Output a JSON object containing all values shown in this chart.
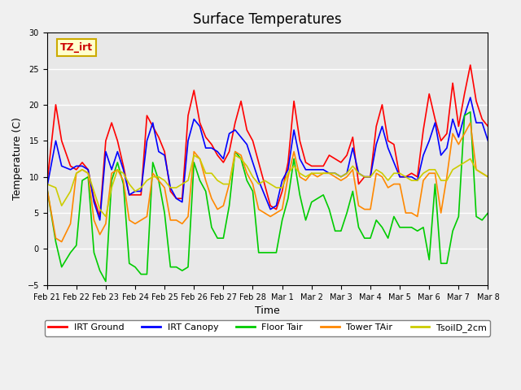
{
  "title": "Surface Temperatures",
  "xlabel": "Time",
  "ylabel": "Temperature (C)",
  "ylim": [
    -5,
    30
  ],
  "background_color": "#f0f0f0",
  "inner_background": "#e8e8e8",
  "grid_color": "white",
  "annotation_text": "TZ_irt",
  "annotation_color": "#cc0000",
  "annotation_bg": "#ffffcc",
  "annotation_border": "#ccaa00",
  "x_tick_labels": [
    "Feb 21",
    "Feb 22",
    "Feb 23",
    "Feb 24",
    "Feb 25",
    "Feb 26",
    "Feb 27",
    "Feb 28",
    "Mar 1",
    "Mar 2",
    "Mar 3",
    "Mar 4",
    "Mar 5",
    "Mar 6",
    "Mar 7",
    "Mar 8"
  ],
  "legend_entries": [
    {
      "label": "IRT Ground",
      "color": "#ff0000"
    },
    {
      "label": "IRT Canopy",
      "color": "#0000ff"
    },
    {
      "label": "Floor Tair",
      "color": "#00cc00"
    },
    {
      "label": "Tower TAir",
      "color": "#ff8800"
    },
    {
      "label": "TsoilD_2cm",
      "color": "#cccc00"
    }
  ],
  "series": {
    "IRT_Ground": {
      "color": "#ff0000",
      "x": [
        0,
        0.3,
        0.5,
        0.8,
        1.0,
        1.2,
        1.4,
        1.6,
        1.8,
        2.0,
        2.2,
        2.4,
        2.6,
        2.8,
        3.0,
        3.2,
        3.4,
        3.6,
        3.8,
        4.0,
        4.2,
        4.4,
        4.6,
        4.8,
        5.0,
        5.2,
        5.4,
        5.6,
        5.8,
        6.0,
        6.2,
        6.4,
        6.6,
        6.8,
        7.0,
        7.2,
        7.4,
        7.6,
        7.8,
        8.0,
        8.2,
        8.4,
        8.6,
        8.8,
        9.0,
        9.2,
        9.4,
        9.6,
        9.8,
        10.0,
        10.2,
        10.4,
        10.6,
        10.8,
        11.0,
        11.2,
        11.4,
        11.6,
        11.8,
        12.0,
        12.2,
        12.4,
        12.6,
        12.8,
        13.0,
        13.2,
        13.4,
        13.6,
        13.8,
        14.0,
        14.2,
        14.4,
        14.6,
        14.8,
        15.0
      ],
      "y": [
        9.0,
        20.0,
        15.0,
        11.5,
        11.0,
        12.0,
        11.0,
        7.0,
        4.5,
        15.0,
        17.5,
        15.0,
        11.5,
        7.5,
        7.5,
        7.5,
        18.5,
        17.0,
        15.5,
        13.5,
        8.0,
        7.0,
        7.0,
        18.5,
        22.0,
        17.5,
        15.5,
        14.5,
        13.0,
        12.0,
        13.5,
        17.5,
        20.5,
        16.5,
        15.0,
        12.0,
        9.0,
        6.0,
        5.5,
        8.0,
        12.0,
        20.5,
        15.0,
        12.0,
        11.5,
        11.5,
        11.5,
        13.0,
        12.5,
        12.0,
        13.0,
        15.5,
        9.0,
        10.0,
        10.0,
        17.0,
        20.0,
        15.0,
        14.5,
        10.0,
        10.0,
        10.5,
        10.0,
        16.5,
        21.5,
        18.0,
        15.0,
        16.0,
        23.0,
        17.0,
        21.5,
        25.5,
        20.5,
        18.0,
        17.0
      ]
    },
    "IRT_Canopy": {
      "color": "#0000ff",
      "x": [
        0,
        0.3,
        0.5,
        0.8,
        1.0,
        1.2,
        1.4,
        1.6,
        1.8,
        2.0,
        2.2,
        2.4,
        2.6,
        2.8,
        3.0,
        3.2,
        3.4,
        3.6,
        3.8,
        4.0,
        4.2,
        4.4,
        4.6,
        4.8,
        5.0,
        5.2,
        5.4,
        5.6,
        5.8,
        6.0,
        6.2,
        6.4,
        6.6,
        6.8,
        7.0,
        7.2,
        7.4,
        7.6,
        7.8,
        8.0,
        8.2,
        8.4,
        8.6,
        8.8,
        9.0,
        9.2,
        9.4,
        9.6,
        9.8,
        10.0,
        10.2,
        10.4,
        10.6,
        10.8,
        11.0,
        11.2,
        11.4,
        11.6,
        11.8,
        12.0,
        12.2,
        12.4,
        12.6,
        12.8,
        13.0,
        13.2,
        13.4,
        13.6,
        13.8,
        14.0,
        14.2,
        14.4,
        14.6,
        14.8,
        15.0
      ],
      "y": [
        8.5,
        15.0,
        11.5,
        11.0,
        11.5,
        11.5,
        11.0,
        6.5,
        4.0,
        13.5,
        11.0,
        13.5,
        11.0,
        7.5,
        8.0,
        8.0,
        15.0,
        17.5,
        13.5,
        13.0,
        8.5,
        7.0,
        6.5,
        15.0,
        18.0,
        17.0,
        14.0,
        14.0,
        13.5,
        12.5,
        16.0,
        16.5,
        15.5,
        14.5,
        12.0,
        9.5,
        7.5,
        5.5,
        6.0,
        9.5,
        11.0,
        16.5,
        12.5,
        11.0,
        11.0,
        11.0,
        11.0,
        10.5,
        10.5,
        10.0,
        10.5,
        14.0,
        10.5,
        10.0,
        10.0,
        14.5,
        17.0,
        14.0,
        12.0,
        10.0,
        10.0,
        10.0,
        9.5,
        13.0,
        15.0,
        17.5,
        13.0,
        14.0,
        18.0,
        15.5,
        18.5,
        21.0,
        17.5,
        17.5,
        15.0
      ]
    },
    "Floor_Tair": {
      "color": "#00cc00",
      "x": [
        0,
        0.3,
        0.5,
        0.8,
        1.0,
        1.2,
        1.4,
        1.6,
        1.8,
        2.0,
        2.2,
        2.4,
        2.6,
        2.8,
        3.0,
        3.2,
        3.4,
        3.6,
        3.8,
        4.0,
        4.2,
        4.4,
        4.6,
        4.8,
        5.0,
        5.2,
        5.4,
        5.6,
        5.8,
        6.0,
        6.2,
        6.4,
        6.6,
        6.8,
        7.0,
        7.2,
        7.4,
        7.6,
        7.8,
        8.0,
        8.2,
        8.4,
        8.6,
        8.8,
        9.0,
        9.2,
        9.4,
        9.6,
        9.8,
        10.0,
        10.2,
        10.4,
        10.6,
        10.8,
        11.0,
        11.2,
        11.4,
        11.6,
        11.8,
        12.0,
        12.2,
        12.4,
        12.6,
        12.8,
        13.0,
        13.2,
        13.4,
        13.6,
        13.8,
        14.0,
        14.2,
        14.4,
        14.6,
        14.8,
        15.0
      ],
      "y": [
        8.5,
        1.0,
        -2.5,
        -0.5,
        0.5,
        9.5,
        10.0,
        -0.5,
        -3.0,
        -4.5,
        9.5,
        12.0,
        9.0,
        -2.0,
        -2.5,
        -3.5,
        -3.5,
        12.0,
        9.5,
        5.0,
        -2.5,
        -2.5,
        -3.0,
        -2.5,
        12.0,
        9.5,
        8.0,
        3.0,
        1.5,
        1.5,
        6.0,
        13.5,
        12.5,
        9.5,
        8.0,
        -0.5,
        -0.5,
        -0.5,
        -0.5,
        4.0,
        7.0,
        12.5,
        7.5,
        4.0,
        6.5,
        7.0,
        7.5,
        5.5,
        2.5,
        2.5,
        5.0,
        8.0,
        3.0,
        1.5,
        1.5,
        4.0,
        3.0,
        1.5,
        4.5,
        3.0,
        3.0,
        3.0,
        2.5,
        3.0,
        -1.5,
        9.0,
        -2.0,
        -2.0,
        2.5,
        4.5,
        18.5,
        19.0,
        4.5,
        4.0,
        5.0
      ]
    },
    "Tower_TAir": {
      "color": "#ff8800",
      "x": [
        0,
        0.3,
        0.5,
        0.8,
        1.0,
        1.2,
        1.4,
        1.6,
        1.8,
        2.0,
        2.2,
        2.4,
        2.6,
        2.8,
        3.0,
        3.2,
        3.4,
        3.6,
        3.8,
        4.0,
        4.2,
        4.4,
        4.6,
        4.8,
        5.0,
        5.2,
        5.4,
        5.6,
        5.8,
        6.0,
        6.2,
        6.4,
        6.6,
        6.8,
        7.0,
        7.2,
        7.4,
        7.6,
        7.8,
        8.0,
        8.2,
        8.4,
        8.6,
        8.8,
        9.0,
        9.2,
        9.4,
        9.6,
        9.8,
        10.0,
        10.2,
        10.4,
        10.6,
        10.8,
        11.0,
        11.2,
        11.4,
        11.6,
        11.8,
        12.0,
        12.2,
        12.4,
        12.6,
        12.8,
        13.0,
        13.2,
        13.4,
        13.6,
        13.8,
        14.0,
        14.2,
        14.4,
        14.6,
        14.8,
        15.0
      ],
      "y": [
        8.5,
        1.5,
        1.0,
        3.5,
        10.5,
        11.0,
        10.5,
        4.0,
        2.0,
        3.5,
        10.5,
        11.0,
        9.5,
        4.0,
        3.5,
        4.0,
        4.5,
        10.5,
        9.5,
        8.5,
        4.0,
        4.0,
        3.5,
        4.5,
        13.5,
        12.5,
        9.5,
        7.0,
        5.5,
        6.0,
        9.0,
        13.5,
        13.0,
        10.5,
        9.0,
        5.5,
        5.0,
        4.5,
        5.0,
        5.5,
        10.0,
        13.5,
        10.0,
        9.5,
        10.5,
        10.0,
        10.5,
        10.5,
        10.0,
        9.5,
        10.0,
        11.0,
        6.0,
        5.5,
        5.5,
        10.5,
        10.0,
        8.5,
        9.0,
        9.0,
        5.0,
        5.0,
        4.5,
        9.5,
        10.5,
        10.5,
        5.0,
        10.0,
        16.0,
        14.5,
        16.0,
        17.5,
        11.0,
        10.5,
        10.0
      ]
    },
    "TsoilD_2cm": {
      "color": "#cccc00",
      "x": [
        0,
        0.3,
        0.5,
        0.8,
        1.0,
        1.2,
        1.4,
        1.6,
        1.8,
        2.0,
        2.2,
        2.4,
        2.6,
        2.8,
        3.0,
        3.2,
        3.4,
        3.6,
        3.8,
        4.0,
        4.2,
        4.4,
        4.6,
        4.8,
        5.0,
        5.2,
        5.4,
        5.6,
        5.8,
        6.0,
        6.2,
        6.4,
        6.6,
        6.8,
        7.0,
        7.2,
        7.4,
        7.6,
        7.8,
        8.0,
        8.2,
        8.4,
        8.6,
        8.8,
        9.0,
        9.2,
        9.4,
        9.6,
        9.8,
        10.0,
        10.2,
        10.4,
        10.6,
        10.8,
        11.0,
        11.2,
        11.4,
        11.6,
        11.8,
        12.0,
        12.2,
        12.4,
        12.6,
        12.8,
        13.0,
        13.2,
        13.4,
        13.6,
        13.8,
        14.0,
        14.2,
        14.4,
        14.6,
        14.8,
        15.0
      ],
      "y": [
        9.0,
        8.5,
        6.0,
        8.0,
        10.5,
        11.0,
        10.5,
        8.0,
        5.5,
        4.5,
        8.5,
        11.0,
        10.5,
        9.0,
        8.0,
        8.5,
        9.5,
        10.0,
        10.0,
        9.5,
        8.5,
        8.5,
        9.0,
        9.5,
        13.0,
        12.5,
        10.5,
        10.5,
        9.5,
        9.0,
        9.0,
        13.0,
        12.5,
        11.5,
        10.0,
        9.0,
        9.5,
        9.0,
        8.5,
        8.5,
        10.5,
        11.5,
        10.5,
        10.0,
        10.5,
        10.5,
        10.5,
        10.5,
        10.5,
        10.0,
        10.5,
        11.5,
        10.5,
        10.0,
        10.0,
        11.0,
        10.5,
        9.5,
        10.5,
        10.5,
        10.0,
        9.5,
        9.5,
        10.5,
        11.0,
        11.0,
        9.5,
        9.5,
        11.0,
        11.5,
        12.0,
        12.5,
        11.0,
        10.5,
        10.0
      ]
    }
  }
}
